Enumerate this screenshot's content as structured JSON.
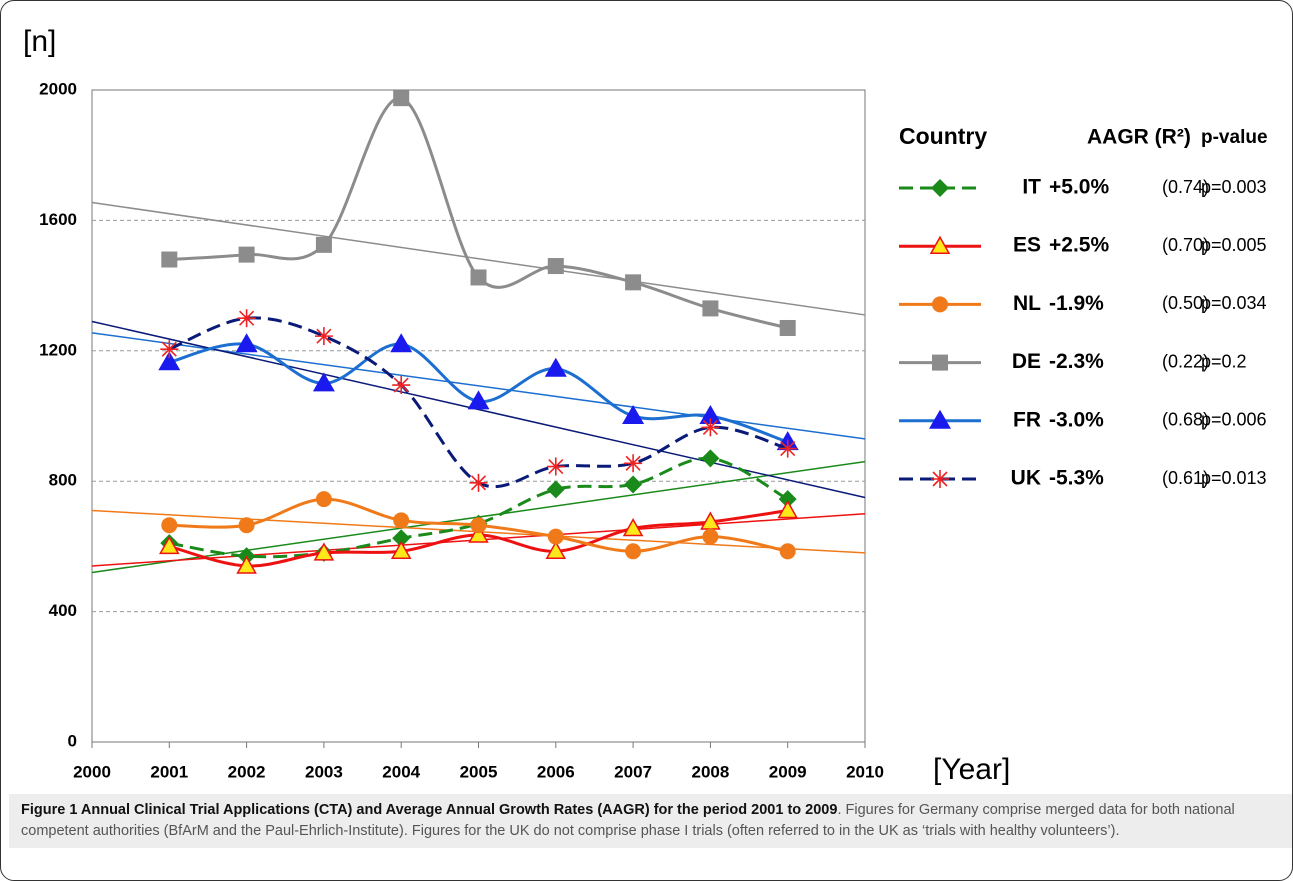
{
  "chart_data": {
    "type": "line",
    "ylabel": "[n]",
    "xlabel": "[Year]",
    "x": [
      2001,
      2002,
      2003,
      2004,
      2005,
      2006,
      2007,
      2008,
      2009
    ],
    "xlim": [
      2000,
      2010
    ],
    "xticks": [
      2000,
      2001,
      2002,
      2003,
      2004,
      2005,
      2006,
      2007,
      2008,
      2009,
      2010
    ],
    "ylim": [
      0,
      2000
    ],
    "yticks": [
      0,
      400,
      800,
      1200,
      1600,
      2000
    ],
    "grid": true,
    "legend_header": [
      "Country",
      "AAGR (R²)",
      "p-value"
    ],
    "series": [
      {
        "name": "IT",
        "color": "#1a8a1a",
        "marker": "diamond",
        "dash": true,
        "aagr": "+5.0%",
        "r2": "(0.74)",
        "p": "p=0.003",
        "values": [
          610,
          570,
          580,
          625,
          670,
          775,
          790,
          870,
          745
        ],
        "trend": [
          520,
          860
        ]
      },
      {
        "name": "ES",
        "color": "#ee1111",
        "marker": "triangle-yellow",
        "dash": false,
        "aagr": "+2.5%",
        "r2": "(0.70)",
        "p": "p=0.005",
        "values": [
          600,
          540,
          580,
          585,
          635,
          585,
          655,
          675,
          710
        ],
        "trend": [
          540,
          700
        ]
      },
      {
        "name": "NL",
        "color": "#f07a1a",
        "marker": "circle",
        "dash": false,
        "aagr": "-1.9%",
        "r2": "(0.50)",
        "p": "p=0.034",
        "values": [
          665,
          665,
          745,
          680,
          665,
          630,
          585,
          630,
          585
        ],
        "trend": [
          710,
          580
        ]
      },
      {
        "name": "DE",
        "color": "#8c8c8c",
        "marker": "square",
        "dash": false,
        "aagr": "-2.3%",
        "r2": "(0.22)",
        "p": "p=0.2",
        "values": [
          1480,
          1495,
          1525,
          1975,
          1425,
          1460,
          1410,
          1330,
          1270
        ],
        "trend": [
          1655,
          1310
        ]
      },
      {
        "name": "FR",
        "color": "#1c6fd0",
        "marker": "triangle-blue",
        "dash": false,
        "aagr": "-3.0%",
        "r2": "(0.68)",
        "p": "p=0.006",
        "values": [
          1165,
          1220,
          1100,
          1220,
          1045,
          1145,
          1000,
          1000,
          920
        ],
        "trend": [
          1255,
          930
        ]
      },
      {
        "name": "UK",
        "color": "#0a1a78",
        "marker": "star",
        "dash": true,
        "aagr": "-5.3%",
        "r2": "(0.61)",
        "p": "p=0.013",
        "values": [
          1205,
          1300,
          1245,
          1095,
          795,
          845,
          855,
          965,
          900
        ],
        "trend": [
          1290,
          750
        ]
      }
    ]
  },
  "caption": {
    "bold": "Figure 1 Annual Clinical Trial Applications (CTA) and Average Annual Growth Rates (AAGR) for the period 2001 to 2009",
    "text": ". Figures for Germany comprise merged data for both national competent authorities (BfArM and the Paul-Ehrlich-Institute). Figures for the UK do not comprise phase I trials (often referred to in the UK as ‘trials with healthy volunteers’)."
  }
}
